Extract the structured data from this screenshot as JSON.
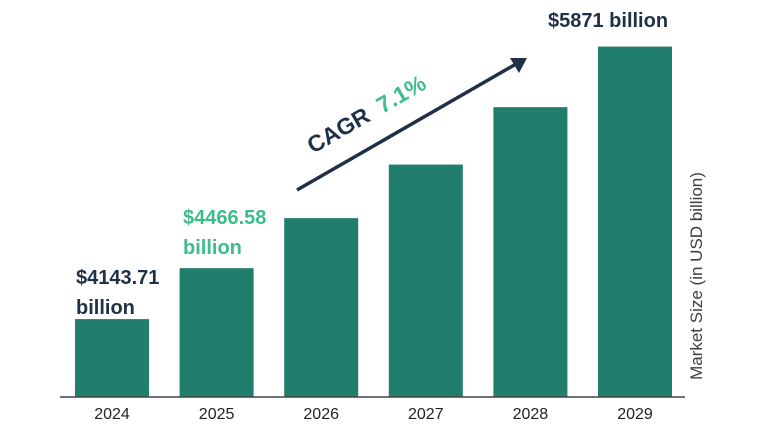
{
  "chart_data": {
    "type": "bar",
    "categories": [
      "2024",
      "2025",
      "2026",
      "2027",
      "2028",
      "2029"
    ],
    "values": [
      4143.71,
      4466.58,
      4783.7,
      5123.3,
      5487.1,
      5871
    ],
    "ylim": [
      3650,
      5900
    ],
    "ylabel": "Market Size (in USD billion)",
    "xlabel": "",
    "bar_color": "#217e6d",
    "axis_color": "#444444",
    "annotations": {
      "label_2024_line1": "$4143.71",
      "label_2024_line2": "billion",
      "label_2025_line1": "$4466.58",
      "label_2025_line2": "billion",
      "label_2029": "$5871 billion",
      "cagr_text": "CAGR",
      "cagr_value": "7.1%",
      "cagr_text_color": "#1f3146",
      "cagr_value_color": "#3dbd8a"
    }
  }
}
